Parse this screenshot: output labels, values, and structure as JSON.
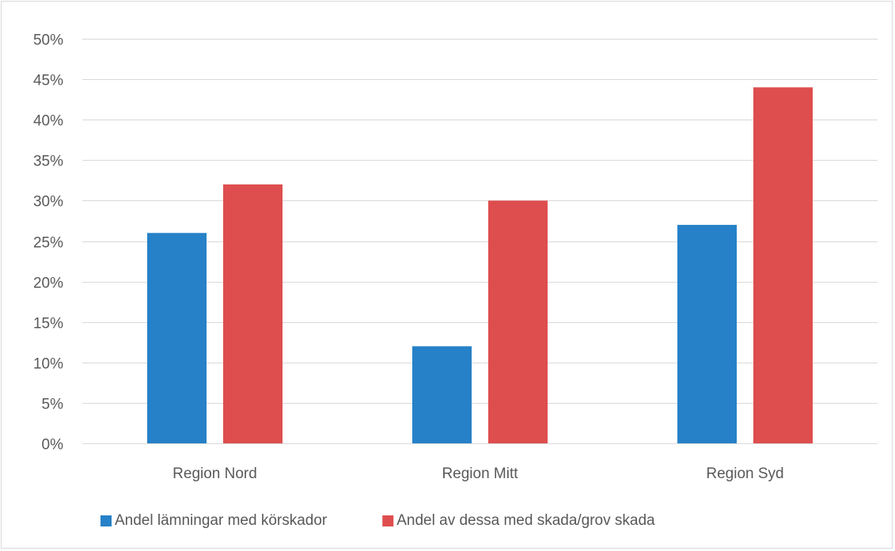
{
  "chart_data": {
    "type": "bar",
    "title": "",
    "xlabel": "",
    "ylabel": "",
    "categories": [
      "Region Nord",
      "Region Mitt",
      "Region Syd"
    ],
    "series": [
      {
        "name": "Andel lämningar med körskador",
        "color": "#2681c8",
        "values": [
          26,
          12,
          27
        ]
      },
      {
        "name": "Andel av dessa med skada/grov skada",
        "color": "#de4e4e",
        "values": [
          32,
          30,
          44
        ]
      }
    ],
    "ylim": [
      0,
      50
    ],
    "yticks": [
      0,
      5,
      10,
      15,
      20,
      25,
      30,
      35,
      40,
      45,
      50
    ],
    "ytick_labels": [
      "0%",
      "5%",
      "10%",
      "15%",
      "20%",
      "25%",
      "30%",
      "35%",
      "40%",
      "45%",
      "50%"
    ],
    "grid": true,
    "legend_position": "bottom"
  }
}
